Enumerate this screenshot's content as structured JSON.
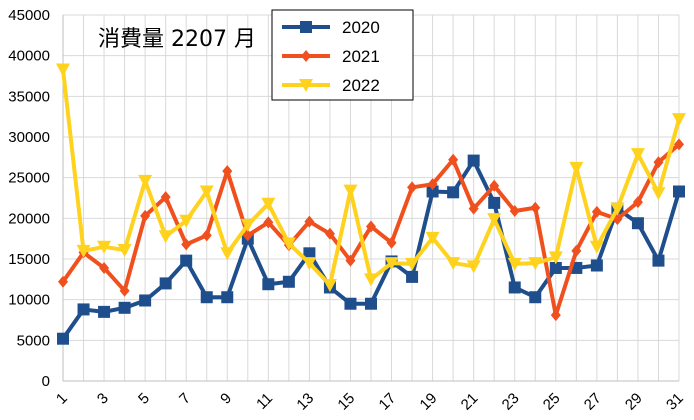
{
  "chart_data": {
    "type": "line",
    "title": "消費量 2207 月",
    "xlabel": "",
    "ylabel": "",
    "x": [
      1,
      2,
      3,
      4,
      5,
      6,
      7,
      8,
      9,
      10,
      11,
      12,
      13,
      14,
      15,
      16,
      17,
      18,
      19,
      20,
      21,
      22,
      23,
      24,
      25,
      26,
      27,
      28,
      29,
      30,
      31
    ],
    "xtick_labels": [
      "1",
      "3",
      "5",
      "7",
      "9",
      "11",
      "13",
      "15",
      "17",
      "19",
      "21",
      "23",
      "25",
      "27",
      "29",
      "31"
    ],
    "ylim": [
      0,
      45000
    ],
    "yticks": [
      0,
      5000,
      10000,
      15000,
      20000,
      25000,
      30000,
      35000,
      40000,
      45000
    ],
    "grid": true,
    "legend_position": "top-center",
    "series": [
      {
        "name": "2020",
        "color": "#1f4e8c",
        "marker": "square",
        "values": [
          5200,
          8800,
          8500,
          9000,
          9900,
          12000,
          14800,
          10300,
          10300,
          17500,
          11900,
          12200,
          15700,
          11500,
          9500,
          9500,
          14700,
          12800,
          23300,
          23200,
          27100,
          21900,
          11500,
          10300,
          13900,
          13900,
          14200,
          21200,
          19400,
          14800,
          23300
        ]
      },
      {
        "name": "2021",
        "color": "#f0501e",
        "marker": "diamond",
        "values": [
          12200,
          15800,
          13900,
          11100,
          20300,
          22600,
          16800,
          17900,
          25800,
          17900,
          19500,
          16700,
          19600,
          18100,
          14800,
          19000,
          17000,
          23800,
          24200,
          27200,
          21200,
          24000,
          20900,
          21300,
          8100,
          16000,
          20800,
          19900,
          22000,
          26900,
          29100
        ]
      },
      {
        "name": "2022",
        "color": "#ffd21e",
        "marker": "triangle-down",
        "values": [
          38300,
          16000,
          16500,
          16100,
          24600,
          17800,
          19700,
          23300,
          15700,
          19200,
          21800,
          16900,
          14500,
          11800,
          23400,
          12500,
          14500,
          14400,
          17600,
          14500,
          14100,
          19900,
          14400,
          14500,
          15200,
          26200,
          16500,
          21200,
          27900,
          23100,
          32200
        ]
      }
    ]
  }
}
